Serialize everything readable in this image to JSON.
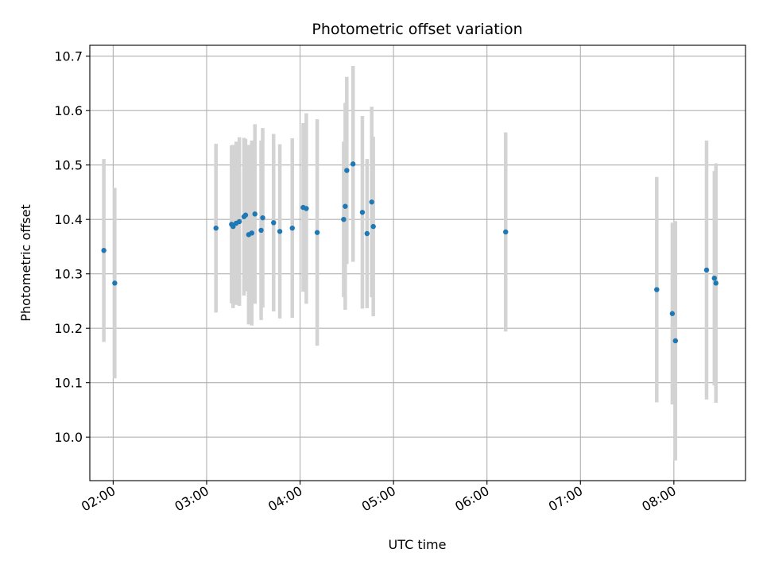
{
  "chart_data": {
    "type": "scatter",
    "title": "Photometric offset variation",
    "xlabel": "UTC time",
    "ylabel": "Photometric offset",
    "x_unit": "UTC hours (HH:MM)",
    "xlim": [
      "01:45",
      "08:46"
    ],
    "ylim": [
      9.92,
      10.72
    ],
    "x_ticks": [
      "02:00",
      "03:00",
      "04:00",
      "05:00",
      "06:00",
      "07:00",
      "08:00"
    ],
    "y_ticks": [
      "10.0",
      "10.1",
      "10.2",
      "10.3",
      "10.4",
      "10.5",
      "10.6",
      "10.7"
    ],
    "grid": true,
    "marker_color": "#1f77b4",
    "errorbar_color": "#d3d3d3",
    "points": [
      {
        "t": "01:54",
        "y": 10.343,
        "err": 0.168
      },
      {
        "t": "02:01",
        "y": 10.283,
        "err": 0.175
      },
      {
        "t": "03:06",
        "y": 10.384,
        "err": 0.155
      },
      {
        "t": "03:16",
        "y": 10.391,
        "err": 0.145
      },
      {
        "t": "03:17",
        "y": 10.387,
        "err": 0.15
      },
      {
        "t": "03:19",
        "y": 10.393,
        "err": 0.15
      },
      {
        "t": "03:21",
        "y": 10.396,
        "err": 0.155
      },
      {
        "t": "03:24",
        "y": 10.405,
        "err": 0.145
      },
      {
        "t": "03:25",
        "y": 10.408,
        "err": 0.14
      },
      {
        "t": "03:27",
        "y": 10.372,
        "err": 0.165
      },
      {
        "t": "03:29",
        "y": 10.375,
        "err": 0.17
      },
      {
        "t": "03:31",
        "y": 10.41,
        "err": 0.165
      },
      {
        "t": "03:35",
        "y": 10.38,
        "err": 0.165
      },
      {
        "t": "03:36",
        "y": 10.403,
        "err": 0.165
      },
      {
        "t": "03:43",
        "y": 10.394,
        "err": 0.163
      },
      {
        "t": "03:47",
        "y": 10.378,
        "err": 0.16
      },
      {
        "t": "03:55",
        "y": 10.384,
        "err": 0.165
      },
      {
        "t": "04:02",
        "y": 10.422,
        "err": 0.155
      },
      {
        "t": "04:04",
        "y": 10.42,
        "err": 0.175
      },
      {
        "t": "04:11",
        "y": 10.376,
        "err": 0.208
      },
      {
        "t": "04:28",
        "y": 10.4,
        "err": 0.143
      },
      {
        "t": "04:29",
        "y": 10.424,
        "err": 0.19
      },
      {
        "t": "04:30",
        "y": 10.49,
        "err": 0.172
      },
      {
        "t": "04:34",
        "y": 10.502,
        "err": 0.18
      },
      {
        "t": "04:40",
        "y": 10.413,
        "err": 0.177
      },
      {
        "t": "04:43",
        "y": 10.374,
        "err": 0.137
      },
      {
        "t": "04:46",
        "y": 10.432,
        "err": 0.175
      },
      {
        "t": "04:47",
        "y": 10.387,
        "err": 0.165
      },
      {
        "t": "06:12",
        "y": 10.377,
        "err": 0.183
      },
      {
        "t": "07:49",
        "y": 10.271,
        "err": 0.207
      },
      {
        "t": "07:59",
        "y": 10.227,
        "err": 0.167
      },
      {
        "t": "08:01",
        "y": 10.177,
        "err": 0.22
      },
      {
        "t": "08:21",
        "y": 10.307,
        "err": 0.238
      },
      {
        "t": "08:26",
        "y": 10.292,
        "err": 0.197
      },
      {
        "t": "08:27",
        "y": 10.283,
        "err": 0.22
      }
    ]
  }
}
